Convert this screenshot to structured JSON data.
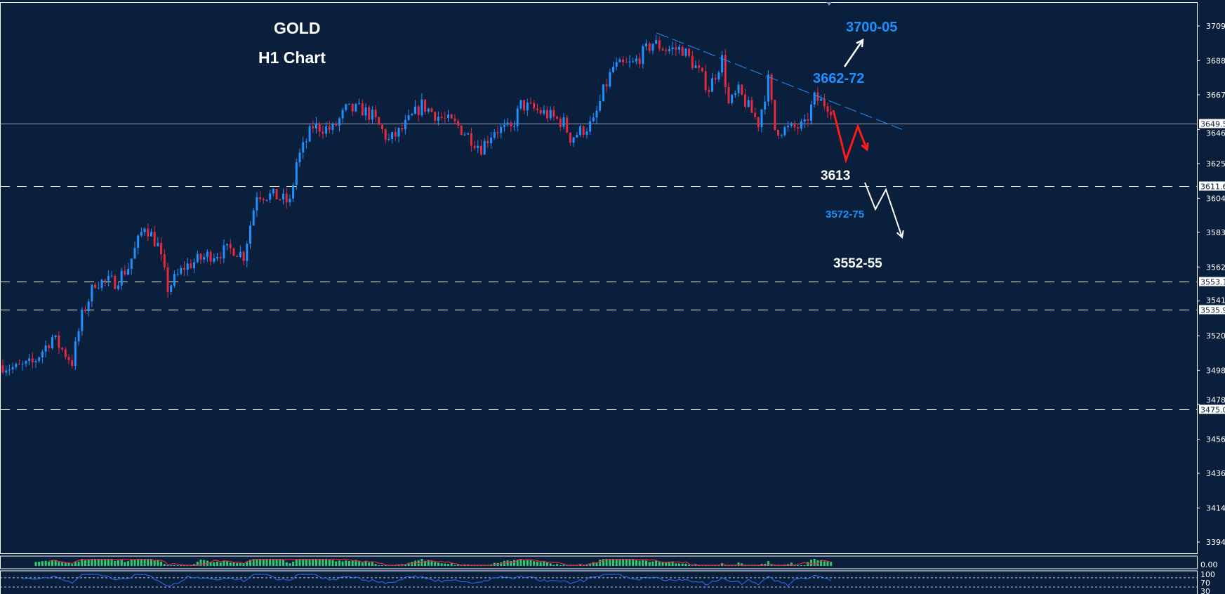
{
  "colors": {
    "background": "#0a1f3b",
    "bull": "#1e90ff",
    "bear": "#e8283c",
    "grid_line": "#ffffff",
    "trendline": "#1e90ff",
    "histogram": "#2ecc71",
    "signal": "#e8283c",
    "rsi": "#2f6fff"
  },
  "title": {
    "line1": "GOLD",
    "line2": "H1 Chart"
  },
  "annotations": [
    {
      "text": "3700-05",
      "color": "#1e90ff"
    },
    {
      "text": "3662-72",
      "color": "#1e90ff"
    },
    {
      "text": "3613",
      "color": "#ffffff"
    },
    {
      "text": "3572-75",
      "color": "#1e90ff"
    },
    {
      "text": "3552-55",
      "color": "#ffffff"
    }
  ],
  "chart_data": {
    "type": "candlestick",
    "symbol": "GOLD",
    "timeframe": "H1",
    "ylim": [
      3380,
      3712
    ],
    "y_ticks": [
      "3709.20",
      "3688.00",
      "3667.20",
      "3646.00",
      "3625.20",
      "3604.00",
      "3583.20",
      "3562.00",
      "3541.20",
      "3520.00",
      "3498.80",
      "3478.00",
      "3456.80",
      "3436.00",
      "3414.80",
      "3394.00"
    ],
    "current_price": "3649.51",
    "horizontal_levels": [
      "3611.61",
      "3553.12",
      "3535.95",
      "3475.07"
    ],
    "close_path_bar_price": [
      [
        0,
        3502
      ],
      [
        4,
        3500
      ],
      [
        9,
        3503
      ],
      [
        15,
        3519
      ],
      [
        21,
        3504
      ],
      [
        24,
        3532
      ],
      [
        28,
        3553
      ],
      [
        34,
        3553
      ],
      [
        38,
        3562
      ],
      [
        43,
        3588
      ],
      [
        47,
        3575
      ],
      [
        50,
        3549
      ],
      [
        55,
        3562
      ],
      [
        62,
        3569
      ],
      [
        70,
        3573
      ],
      [
        73,
        3569
      ],
      [
        77,
        3607
      ],
      [
        83,
        3605
      ],
      [
        87,
        3601
      ],
      [
        89,
        3626
      ],
      [
        94,
        3648
      ],
      [
        100,
        3646
      ],
      [
        104,
        3658
      ],
      [
        109,
        3658
      ],
      [
        112,
        3654
      ],
      [
        117,
        3639
      ],
      [
        121,
        3646
      ],
      [
        127,
        3661
      ],
      [
        132,
        3654
      ],
      [
        138,
        3648
      ],
      [
        145,
        3635
      ],
      [
        149,
        3646
      ],
      [
        154,
        3646
      ],
      [
        157,
        3661
      ],
      [
        164,
        3656
      ],
      [
        170,
        3650
      ],
      [
        172,
        3641
      ],
      [
        179,
        3650
      ],
      [
        182,
        3669
      ],
      [
        185,
        3684
      ],
      [
        191,
        3686
      ],
      [
        197,
        3699
      ],
      [
        201,
        3695
      ],
      [
        206,
        3695
      ],
      [
        210,
        3684
      ],
      [
        214,
        3671
      ],
      [
        218,
        3689
      ],
      [
        220,
        3661
      ],
      [
        223,
        3669
      ],
      [
        229,
        3650
      ],
      [
        232,
        3676
      ],
      [
        234,
        3646
      ],
      [
        237,
        3646
      ],
      [
        243,
        3648
      ],
      [
        246,
        3665
      ],
      [
        250,
        3661
      ],
      [
        251,
        3659
      ]
    ],
    "trendline": {
      "from_price": 3705,
      "to_price": 3646,
      "style": "dashed"
    },
    "projections": [
      "up to 3700-05",
      "down to 3613",
      "down to 3552-55"
    ],
    "indicators": [
      {
        "type": "histogram",
        "axis_labels": [
          "0.00"
        ]
      },
      {
        "type": "rsi",
        "levels": [
          "70",
          "30"
        ],
        "axis_labels": [
          "100",
          "70",
          "30"
        ]
      }
    ]
  }
}
